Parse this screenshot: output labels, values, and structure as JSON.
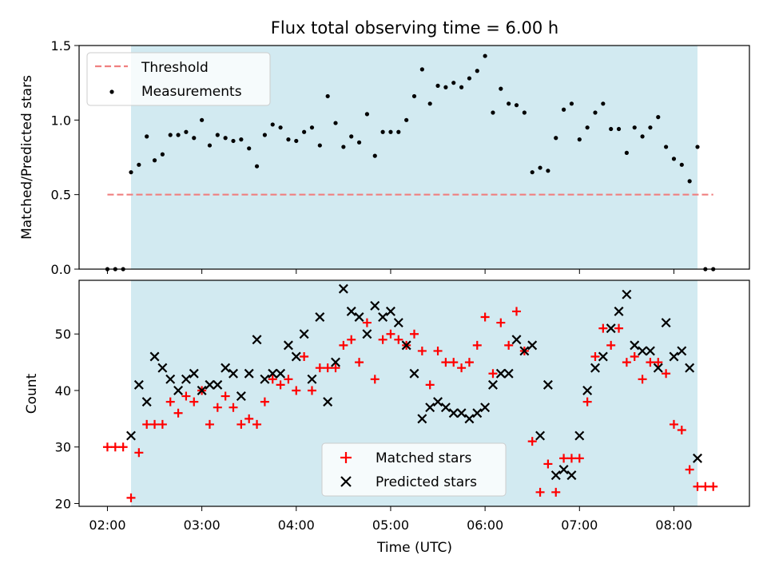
{
  "chart_data": [
    {
      "type": "scatter",
      "title": "Flux total observing time = 6.00 h",
      "ylabel": "Matched/Predicted stars",
      "ylim": [
        0,
        1.5
      ],
      "yticks": [
        "0.0",
        "0.5",
        "1.0",
        "1.5"
      ],
      "xlim": [
        "01:42",
        "08:48"
      ],
      "shaded_span": [
        "02:15",
        "08:15"
      ],
      "shade_color": "#add8e6",
      "threshold": {
        "name": "Threshold",
        "value": 0.5,
        "x_range": [
          "02:00",
          "08:25"
        ],
        "color": "#f08080",
        "style": "dashed"
      },
      "series": [
        {
          "name": "Measurements",
          "color": "#000000",
          "points": [
            [
              "02:00",
              0
            ],
            [
              "02:05",
              0
            ],
            [
              "02:10",
              0
            ],
            [
              "02:15",
              0.65
            ],
            [
              "02:20",
              0.7
            ],
            [
              "02:25",
              0.89
            ],
            [
              "02:30",
              0.73
            ],
            [
              "02:35",
              0.77
            ],
            [
              "02:40",
              0.9
            ],
            [
              "02:45",
              0.9
            ],
            [
              "02:50",
              0.92
            ],
            [
              "02:55",
              0.88
            ],
            [
              "03:00",
              1.0
            ],
            [
              "03:05",
              0.83
            ],
            [
              "03:10",
              0.9
            ],
            [
              "03:15",
              0.88
            ],
            [
              "03:20",
              0.86
            ],
            [
              "03:25",
              0.87
            ],
            [
              "03:30",
              0.81
            ],
            [
              "03:35",
              0.69
            ],
            [
              "03:40",
              0.9
            ],
            [
              "03:45",
              0.97
            ],
            [
              "03:50",
              0.95
            ],
            [
              "03:55",
              0.87
            ],
            [
              "04:00",
              0.86
            ],
            [
              "04:05",
              0.92
            ],
            [
              "04:10",
              0.95
            ],
            [
              "04:15",
              0.83
            ],
            [
              "04:20",
              1.16
            ],
            [
              "04:25",
              0.98
            ],
            [
              "04:30",
              0.82
            ],
            [
              "04:35",
              0.89
            ],
            [
              "04:40",
              0.85
            ],
            [
              "04:45",
              1.04
            ],
            [
              "04:50",
              0.76
            ],
            [
              "04:55",
              0.92
            ],
            [
              "05:00",
              0.92
            ],
            [
              "05:05",
              0.92
            ],
            [
              "05:10",
              1.0
            ],
            [
              "05:15",
              1.16
            ],
            [
              "05:20",
              1.34
            ],
            [
              "05:25",
              1.11
            ],
            [
              "05:30",
              1.23
            ],
            [
              "05:35",
              1.22
            ],
            [
              "05:40",
              1.25
            ],
            [
              "05:45",
              1.22
            ],
            [
              "05:50",
              1.28
            ],
            [
              "05:55",
              1.33
            ],
            [
              "06:00",
              1.43
            ],
            [
              "06:05",
              1.05
            ],
            [
              "06:10",
              1.21
            ],
            [
              "06:15",
              1.11
            ],
            [
              "06:20",
              1.1
            ],
            [
              "06:25",
              1.05
            ],
            [
              "06:30",
              0.65
            ],
            [
              "06:35",
              0.68
            ],
            [
              "06:40",
              0.66
            ],
            [
              "06:45",
              0.88
            ],
            [
              "06:50",
              1.07
            ],
            [
              "06:55",
              1.11
            ],
            [
              "07:00",
              0.87
            ],
            [
              "07:05",
              0.95
            ],
            [
              "07:10",
              1.05
            ],
            [
              "07:15",
              1.11
            ],
            [
              "07:20",
              0.94
            ],
            [
              "07:25",
              0.94
            ],
            [
              "07:30",
              0.78
            ],
            [
              "07:35",
              0.95
            ],
            [
              "07:40",
              0.89
            ],
            [
              "07:45",
              0.95
            ],
            [
              "07:50",
              1.02
            ],
            [
              "07:55",
              0.82
            ],
            [
              "08:00",
              0.74
            ],
            [
              "08:05",
              0.7
            ],
            [
              "08:10",
              0.59
            ],
            [
              "08:15",
              0.82
            ],
            [
              "08:20",
              0
            ],
            [
              "08:25",
              0
            ]
          ]
        }
      ],
      "legend_loc": "upper-left"
    },
    {
      "type": "scatter",
      "xlabel": "Time (UTC)",
      "ylabel": "Count",
      "ylim": [
        19.5,
        59.5
      ],
      "yticks": [
        "20",
        "30",
        "40",
        "50"
      ],
      "xlim": [
        "01:42",
        "08:48"
      ],
      "xticks": [
        "02:00",
        "03:00",
        "04:00",
        "05:00",
        "06:00",
        "07:00",
        "08:00"
      ],
      "shaded_span": [
        "02:15",
        "08:15"
      ],
      "shade_color": "#add8e6",
      "legend_loc": "lower-center",
      "series": [
        {
          "name": "Matched stars",
          "marker": "plus",
          "color": "#ff0000",
          "points": [
            [
              "02:00",
              30
            ],
            [
              "02:05",
              30
            ],
            [
              "02:10",
              30
            ],
            [
              "02:15",
              21
            ],
            [
              "02:20",
              29
            ],
            [
              "02:25",
              34
            ],
            [
              "02:30",
              34
            ],
            [
              "02:35",
              34
            ],
            [
              "02:40",
              38
            ],
            [
              "02:45",
              36
            ],
            [
              "02:50",
              39
            ],
            [
              "02:55",
              38
            ],
            [
              "03:00",
              40
            ],
            [
              "03:05",
              34
            ],
            [
              "03:10",
              37
            ],
            [
              "03:15",
              39
            ],
            [
              "03:20",
              37
            ],
            [
              "03:25",
              34
            ],
            [
              "03:30",
              35
            ],
            [
              "03:35",
              34
            ],
            [
              "03:40",
              38
            ],
            [
              "03:45",
              42
            ],
            [
              "03:50",
              41
            ],
            [
              "03:55",
              42
            ],
            [
              "04:00",
              40
            ],
            [
              "04:05",
              46
            ],
            [
              "04:10",
              40
            ],
            [
              "04:15",
              44
            ],
            [
              "04:20",
              44
            ],
            [
              "04:25",
              44
            ],
            [
              "04:30",
              48
            ],
            [
              "04:35",
              49
            ],
            [
              "04:40",
              45
            ],
            [
              "04:45",
              52
            ],
            [
              "04:50",
              42
            ],
            [
              "04:55",
              49
            ],
            [
              "05:00",
              50
            ],
            [
              "05:05",
              49
            ],
            [
              "05:10",
              48
            ],
            [
              "05:15",
              50
            ],
            [
              "05:20",
              47
            ],
            [
              "05:25",
              41
            ],
            [
              "05:30",
              47
            ],
            [
              "05:35",
              45
            ],
            [
              "05:40",
              45
            ],
            [
              "05:45",
              44
            ],
            [
              "05:50",
              45
            ],
            [
              "05:55",
              48
            ],
            [
              "06:00",
              53
            ],
            [
              "06:05",
              43
            ],
            [
              "06:10",
              52
            ],
            [
              "06:15",
              48
            ],
            [
              "06:20",
              54
            ],
            [
              "06:25",
              47
            ],
            [
              "06:30",
              31
            ],
            [
              "06:35",
              22
            ],
            [
              "06:40",
              27
            ],
            [
              "06:45",
              22
            ],
            [
              "06:50",
              28
            ],
            [
              "06:55",
              28
            ],
            [
              "07:00",
              28
            ],
            [
              "07:05",
              38
            ],
            [
              "07:10",
              46
            ],
            [
              "07:15",
              51
            ],
            [
              "07:20",
              48
            ],
            [
              "07:25",
              51
            ],
            [
              "07:30",
              45
            ],
            [
              "07:35",
              46
            ],
            [
              "07:40",
              42
            ],
            [
              "07:45",
              45
            ],
            [
              "07:50",
              45
            ],
            [
              "07:55",
              43
            ],
            [
              "08:00",
              34
            ],
            [
              "08:05",
              33
            ],
            [
              "08:10",
              26
            ],
            [
              "08:15",
              23
            ],
            [
              "08:20",
              23
            ],
            [
              "08:25",
              23
            ]
          ]
        },
        {
          "name": "Predicted stars",
          "marker": "x",
          "color": "#000000",
          "points": [
            [
              "02:15",
              32
            ],
            [
              "02:20",
              41
            ],
            [
              "02:25",
              38
            ],
            [
              "02:30",
              46
            ],
            [
              "02:35",
              44
            ],
            [
              "02:40",
              42
            ],
            [
              "02:45",
              40
            ],
            [
              "02:50",
              42
            ],
            [
              "02:55",
              43
            ],
            [
              "03:00",
              40
            ],
            [
              "03:05",
              41
            ],
            [
              "03:10",
              41
            ],
            [
              "03:15",
              44
            ],
            [
              "03:20",
              43
            ],
            [
              "03:25",
              39
            ],
            [
              "03:30",
              43
            ],
            [
              "03:35",
              49
            ],
            [
              "03:40",
              42
            ],
            [
              "03:45",
              43
            ],
            [
              "03:50",
              43
            ],
            [
              "03:55",
              48
            ],
            [
              "04:00",
              46
            ],
            [
              "04:05",
              50
            ],
            [
              "04:10",
              42
            ],
            [
              "04:15",
              53
            ],
            [
              "04:20",
              38
            ],
            [
              "04:25",
              45
            ],
            [
              "04:30",
              58
            ],
            [
              "04:35",
              54
            ],
            [
              "04:40",
              53
            ],
            [
              "04:45",
              50
            ],
            [
              "04:50",
              55
            ],
            [
              "04:55",
              53
            ],
            [
              "05:00",
              54
            ],
            [
              "05:05",
              52
            ],
            [
              "05:10",
              48
            ],
            [
              "05:15",
              43
            ],
            [
              "05:20",
              35
            ],
            [
              "05:25",
              37
            ],
            [
              "05:30",
              38
            ],
            [
              "05:35",
              37
            ],
            [
              "05:40",
              36
            ],
            [
              "05:45",
              36
            ],
            [
              "05:50",
              35
            ],
            [
              "05:55",
              36
            ],
            [
              "06:00",
              37
            ],
            [
              "06:05",
              41
            ],
            [
              "06:10",
              43
            ],
            [
              "06:15",
              43
            ],
            [
              "06:20",
              49
            ],
            [
              "06:25",
              47
            ],
            [
              "06:30",
              48
            ],
            [
              "06:35",
              32
            ],
            [
              "06:40",
              41
            ],
            [
              "06:45",
              25
            ],
            [
              "06:50",
              26
            ],
            [
              "06:55",
              25
            ],
            [
              "07:00",
              32
            ],
            [
              "07:05",
              40
            ],
            [
              "07:10",
              44
            ],
            [
              "07:15",
              46
            ],
            [
              "07:20",
              51
            ],
            [
              "07:25",
              54
            ],
            [
              "07:30",
              57
            ],
            [
              "07:35",
              48
            ],
            [
              "07:40",
              47
            ],
            [
              "07:45",
              47
            ],
            [
              "07:50",
              44
            ],
            [
              "07:55",
              52
            ],
            [
              "08:00",
              46
            ],
            [
              "08:05",
              47
            ],
            [
              "08:10",
              44
            ],
            [
              "08:15",
              28
            ]
          ]
        }
      ]
    }
  ]
}
